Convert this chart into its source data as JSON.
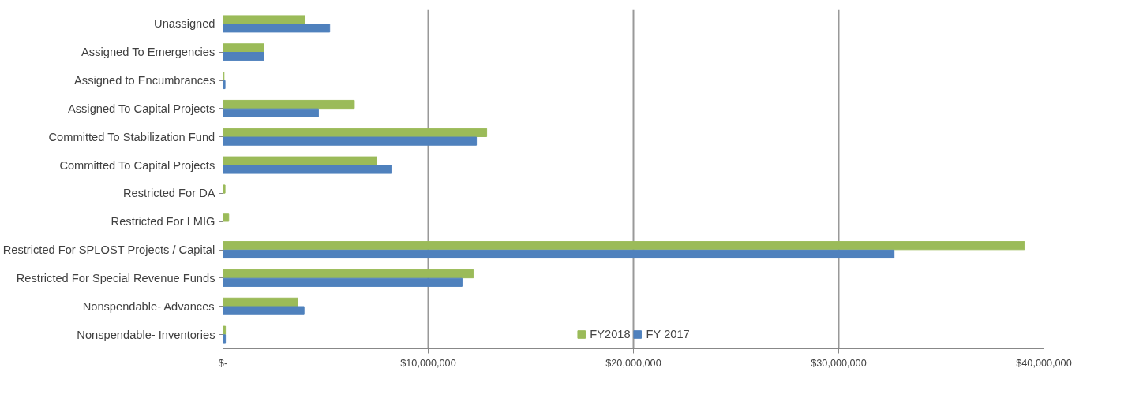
{
  "chart_data": {
    "type": "bar",
    "orientation": "horizontal",
    "categories": [
      "Unassigned",
      "Assigned To Emergencies",
      "Assigned to Encumbrances",
      "Assigned To Capital Projects",
      "Committed To Stabilization Fund",
      "Committed To Capital Projects",
      "Restricted For DA",
      "Restricted For LMIG",
      "Restricted For SPLOST Projects / Capital",
      "Restricted For Special Revenue Funds",
      "Nonspendable- Advances",
      "Nonspendable- Inventories"
    ],
    "series": [
      {
        "name": "FY2018",
        "color": "#9bbb59",
        "values": [
          4000000,
          2000000,
          50000,
          6400000,
          12850000,
          7500000,
          100000,
          280000,
          39050000,
          12200000,
          3650000,
          120000
        ]
      },
      {
        "name": "FY 2017",
        "color": "#4f81bd",
        "values": [
          5200000,
          2000000,
          100000,
          4650000,
          12350000,
          8200000,
          null,
          null,
          32700000,
          11650000,
          3950000,
          120000
        ]
      }
    ],
    "xlim": [
      0,
      40000000
    ],
    "xticks": [
      {
        "value": 0,
        "label": "$-"
      },
      {
        "value": 10000000,
        "label": "$10,000,000"
      },
      {
        "value": 20000000,
        "label": "$20,000,000"
      },
      {
        "value": 30000000,
        "label": "$30,000,000"
      },
      {
        "value": 40000000,
        "label": "$40,000,000"
      }
    ],
    "grid": "x",
    "legend": "bottom"
  }
}
